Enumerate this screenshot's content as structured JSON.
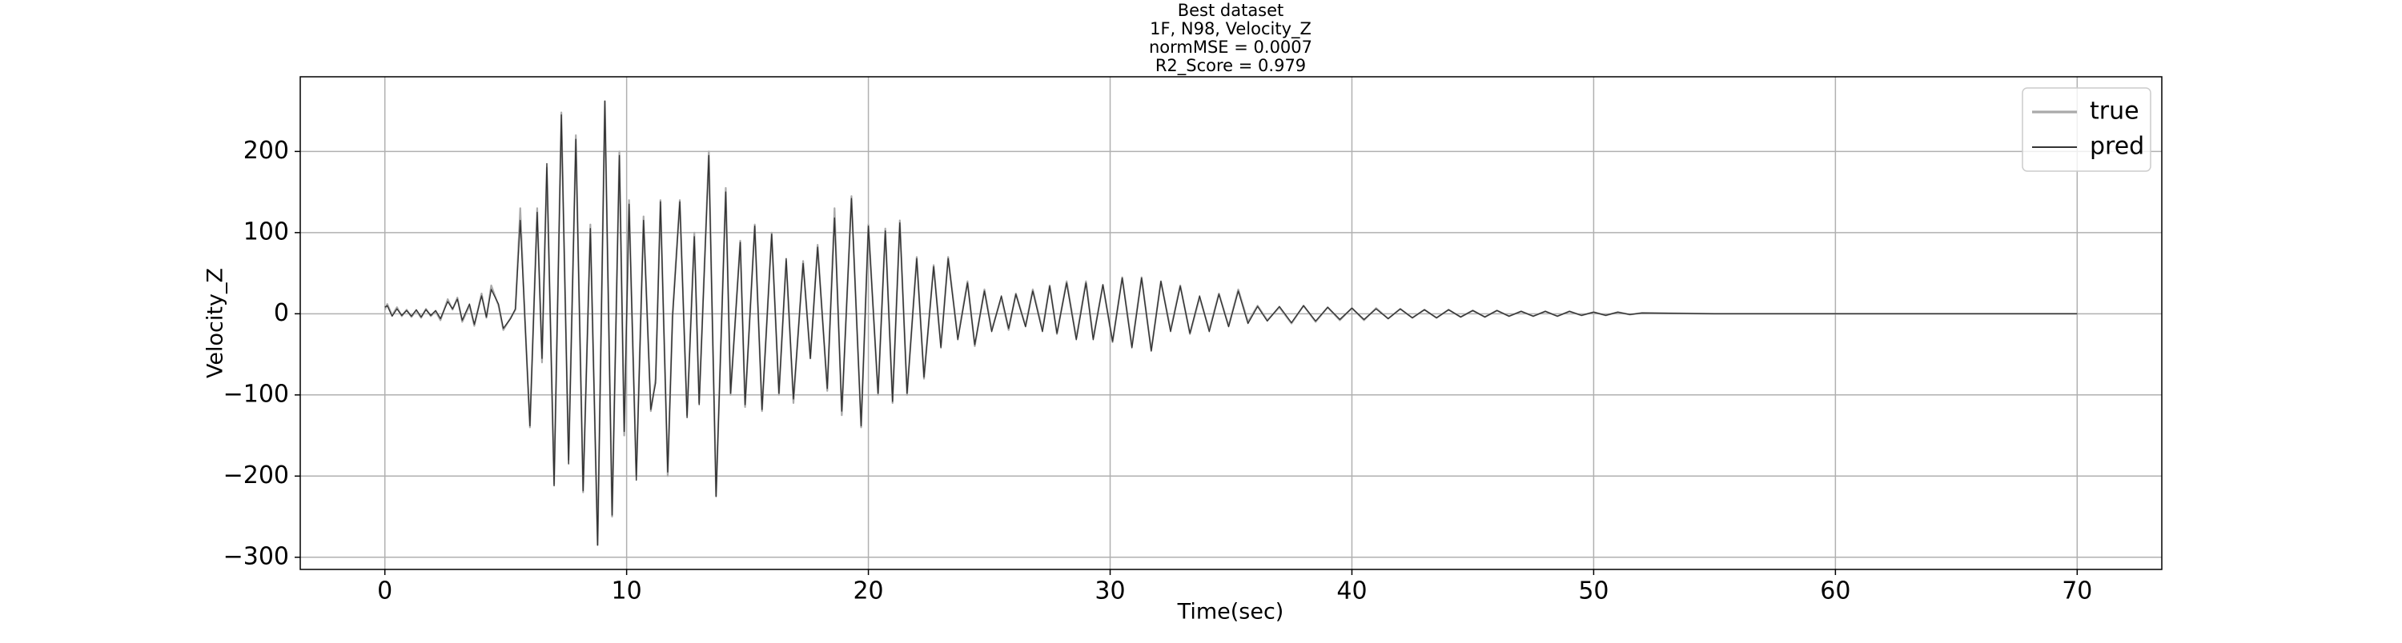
{
  "chart_data": {
    "type": "line",
    "title": "Best dataset",
    "subtitle": [
      "1F, N98, Velocity_Z",
      "normMSE = 0.0007",
      "R2_Score = 0.979"
    ],
    "xlabel": "Time(sec)",
    "ylabel": "Velocity_Z",
    "xlim": [
      -3.5,
      73.5
    ],
    "ylim": [
      -315,
      292
    ],
    "xticks": [
      0,
      10,
      20,
      30,
      40,
      50,
      60,
      70
    ],
    "yticks": [
      {
        "value": -300,
        "label": "−300"
      },
      {
        "value": -200,
        "label": "−200"
      },
      {
        "value": -100,
        "label": "−100"
      },
      0,
      100,
      200
    ],
    "grid": true,
    "legend": "upper right",
    "x": [
      0,
      0.1,
      0.3,
      0.5,
      0.7,
      0.9,
      1.1,
      1.3,
      1.5,
      1.7,
      1.9,
      2.1,
      2.3,
      2.6,
      2.8,
      3.0,
      3.2,
      3.5,
      3.7,
      4.0,
      4.2,
      4.4,
      4.7,
      4.9,
      5.2,
      5.4,
      5.6,
      5.8,
      6.0,
      6.3,
      6.5,
      6.7,
      7.0,
      7.3,
      7.6,
      7.9,
      8.2,
      8.5,
      8.8,
      9.1,
      9.4,
      9.7,
      9.9,
      10.1,
      10.4,
      10.7,
      11.0,
      11.2,
      11.4,
      11.7,
      11.9,
      12.2,
      12.5,
      12.8,
      13.0,
      13.4,
      13.7,
      14.1,
      14.3,
      14.7,
      14.9,
      15.3,
      15.6,
      16.0,
      16.3,
      16.6,
      16.9,
      17.3,
      17.6,
      17.9,
      18.3,
      18.6,
      18.9,
      19.3,
      19.7,
      20.0,
      20.4,
      20.7,
      21.0,
      21.3,
      21.6,
      22.0,
      22.3,
      22.7,
      23.0,
      23.3,
      23.7,
      24.1,
      24.4,
      24.8,
      25.1,
      25.5,
      25.8,
      26.1,
      26.5,
      26.8,
      27.2,
      27.5,
      27.8,
      28.2,
      28.6,
      29.0,
      29.3,
      29.7,
      30.1,
      30.5,
      30.9,
      31.3,
      31.7,
      32.1,
      32.5,
      32.9,
      33.3,
      33.7,
      34.1,
      34.5,
      34.9,
      35.3,
      35.7,
      36.1,
      36.5,
      37.0,
      37.5,
      38.0,
      38.5,
      39.0,
      39.5,
      40.0,
      40.5,
      41.0,
      41.5,
      42.0,
      42.5,
      43.0,
      43.5,
      44.0,
      44.5,
      45.0,
      45.5,
      46.0,
      46.5,
      47.0,
      47.5,
      48.0,
      48.5,
      49.0,
      49.5,
      50.0,
      50.5,
      51.0,
      51.5,
      52.0,
      55.0,
      60.0,
      70.0
    ],
    "series": [
      {
        "name": "true",
        "color": "#aaaaaa",
        "width": 2.2,
        "values": [
          5,
          12,
          -2,
          8,
          -3,
          5,
          -4,
          4,
          -5,
          6,
          -3,
          3,
          -8,
          18,
          5,
          20,
          -10,
          10,
          -15,
          25,
          -5,
          35,
          10,
          -20,
          -5,
          5,
          130,
          -10,
          -140,
          130,
          -60,
          180,
          -210,
          248,
          -180,
          220,
          -220,
          110,
          -285,
          262,
          -250,
          200,
          -150,
          140,
          -200,
          120,
          -120,
          -80,
          140,
          -200,
          0,
          140,
          -125,
          100,
          -110,
          200,
          -225,
          155,
          -100,
          90,
          -115,
          110,
          -120,
          100,
          -100,
          65,
          -110,
          65,
          -55,
          85,
          -95,
          130,
          -125,
          145,
          -140,
          110,
          -100,
          105,
          -110,
          115,
          -100,
          70,
          -80,
          60,
          -40,
          70,
          -30,
          40,
          -40,
          30,
          -20,
          20,
          -20,
          25,
          -15,
          30,
          -20,
          35,
          -25,
          40,
          -30,
          40,
          -30,
          35,
          -35,
          45,
          -40,
          45,
          -45,
          40,
          -20,
          35,
          -25,
          20,
          -20,
          25,
          -15,
          30,
          -10,
          10,
          -8,
          8,
          -12,
          10,
          -10,
          8,
          -8,
          7,
          -8,
          7,
          -6,
          6,
          -5,
          5,
          -5,
          5,
          -4,
          4,
          -4,
          4,
          -3,
          3,
          -3,
          3,
          -3,
          3,
          -2,
          2,
          -2,
          2,
          -1,
          1,
          0,
          0,
          0
        ]
      },
      {
        "name": "pred",
        "color": "#333333",
        "width": 1.4,
        "values": [
          8,
          10,
          -3,
          6,
          -2,
          4,
          -3,
          5,
          -4,
          5,
          -2,
          4,
          -6,
          15,
          6,
          18,
          -8,
          12,
          -13,
          22,
          -4,
          30,
          12,
          -18,
          -6,
          6,
          115,
          -12,
          -138,
          125,
          -55,
          185,
          -212,
          245,
          -185,
          215,
          -218,
          105,
          -285,
          262,
          -248,
          195,
          -145,
          135,
          -205,
          115,
          -118,
          -85,
          138,
          -195,
          -5,
          138,
          -128,
          95,
          -112,
          195,
          -225,
          150,
          -98,
          88,
          -112,
          108,
          -118,
          98,
          -98,
          68,
          -105,
          62,
          -55,
          82,
          -92,
          118,
          -120,
          142,
          -138,
          108,
          -98,
          102,
          -108,
          112,
          -98,
          68,
          -78,
          58,
          -42,
          68,
          -32,
          38,
          -38,
          28,
          -22,
          22,
          -18,
          24,
          -16,
          28,
          -22,
          34,
          -24,
          38,
          -32,
          38,
          -32,
          36,
          -34,
          44,
          -42,
          44,
          -46,
          40,
          -22,
          34,
          -24,
          22,
          -22,
          24,
          -16,
          28,
          -12,
          9,
          -9,
          9,
          -11,
          10,
          -9,
          8,
          -7,
          7,
          -7,
          6,
          -6,
          6,
          -5,
          5,
          -5,
          5,
          -4,
          4,
          -4,
          4,
          -3,
          3,
          -3,
          3,
          -3,
          3,
          -2,
          2,
          -2,
          2,
          -1,
          1,
          0,
          0,
          0
        ]
      }
    ]
  }
}
